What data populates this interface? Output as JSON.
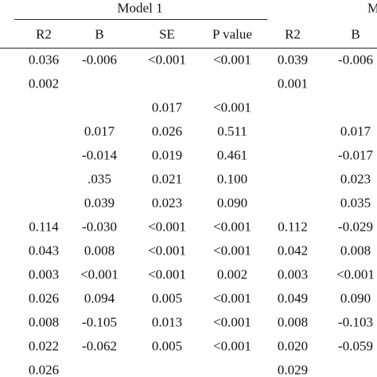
{
  "table": {
    "groups": [
      "Model 1",
      "M"
    ],
    "columns": [
      "R2",
      "B",
      "SE",
      "P value",
      "R2",
      "B"
    ],
    "rows": [
      [
        "0.036",
        "-0.006",
        "<0.001",
        "<0.001",
        "0.039",
        "-0.006"
      ],
      [
        "0.002",
        null,
        null,
        null,
        "0.001",
        null
      ],
      [
        null,
        null,
        "0.017",
        "<0.001",
        null,
        null
      ],
      [
        null,
        "0.017",
        "0.026",
        "0.511",
        null,
        "0.017"
      ],
      [
        null,
        "-0.014",
        "0.019",
        "0.461",
        null,
        "-0.017"
      ],
      [
        null,
        ".035",
        "0.021",
        "0.100",
        null,
        "0.023"
      ],
      [
        null,
        "0.039",
        "0.023",
        "0.090",
        null,
        "0.035"
      ],
      [
        "0.114",
        "-0.030",
        "<0.001",
        "<0.001",
        "0.112",
        "-0.029"
      ],
      [
        "0.043",
        "0.008",
        "<0.001",
        "<0.001",
        "0.042",
        "0.008"
      ],
      [
        "0.003",
        "<0.001",
        "<0.001",
        "0.002",
        "0.003",
        "<0.001"
      ],
      [
        "0.026",
        "0.094",
        "0.005",
        "<0.001",
        "0.049",
        "0.090"
      ],
      [
        "0.008",
        "-0.105",
        "0.013",
        "<0.001",
        "0.008",
        "-0.103"
      ],
      [
        "0.022",
        "-0.062",
        "0.005",
        "<0.001",
        "0.020",
        "-0.059"
      ],
      [
        "0.026",
        null,
        null,
        null,
        "0.029",
        null
      ]
    ]
  }
}
